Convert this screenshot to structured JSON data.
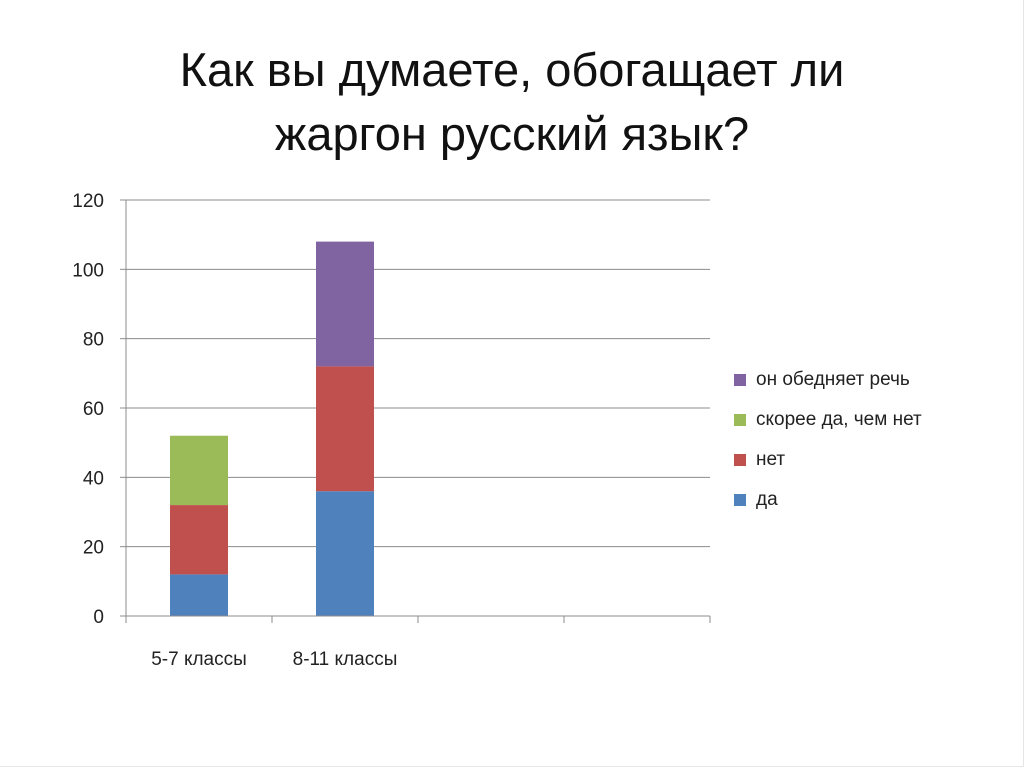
{
  "slide": {
    "title_line1": "Как вы думаете, обогащает  ли",
    "title_line2": "жаргон русский язык?"
  },
  "chart_data": {
    "type": "bar",
    "stacked": true,
    "categories": [
      "5-7 классы",
      "8-11 классы",
      "",
      ""
    ],
    "ylim": [
      0,
      120
    ],
    "yticks": [
      0,
      20,
      40,
      60,
      80,
      100,
      120
    ],
    "grid": true,
    "legend_position": "right",
    "series": [
      {
        "name": "да",
        "color": "#4F81BD",
        "values": [
          12,
          36,
          0,
          0
        ]
      },
      {
        "name": "нет",
        "color": "#C0504D",
        "values": [
          20,
          36,
          0,
          0
        ]
      },
      {
        "name": "скорее да, чем нет",
        "color": "#9BBB59",
        "values": [
          20,
          0,
          0,
          0
        ]
      },
      {
        "name": "он обедняет речь",
        "color": "#8064A2",
        "values": [
          0,
          36,
          0,
          0
        ]
      }
    ]
  }
}
